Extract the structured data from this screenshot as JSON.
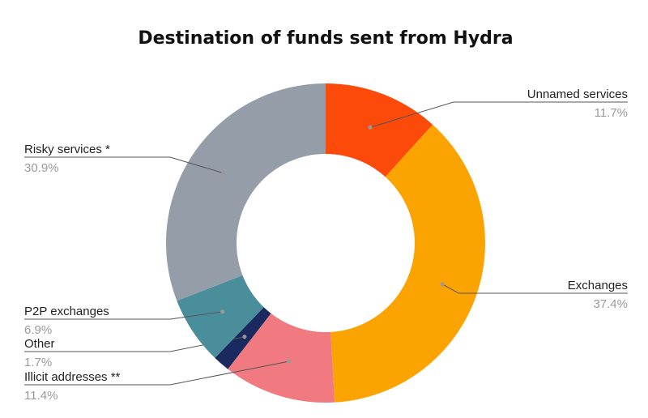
{
  "chart_data": {
    "type": "donut",
    "title": "Destination of funds sent from Hydra",
    "categories": [
      "Unnamed services",
      "Exchanges",
      "Illicit addresses **",
      "Other",
      "P2P exchanges",
      "Risky services *"
    ],
    "values": [
      11.7,
      37.4,
      11.4,
      1.7,
      6.9,
      30.9
    ],
    "value_labels": [
      "11.7%",
      "37.4%",
      "11.4%",
      "1.7%",
      "6.9%",
      "30.9%"
    ],
    "colors": [
      "#fc4a0a",
      "#fba300",
      "#f07a80",
      "#1b2a5e",
      "#4a8d9b",
      "#959ea8"
    ]
  }
}
